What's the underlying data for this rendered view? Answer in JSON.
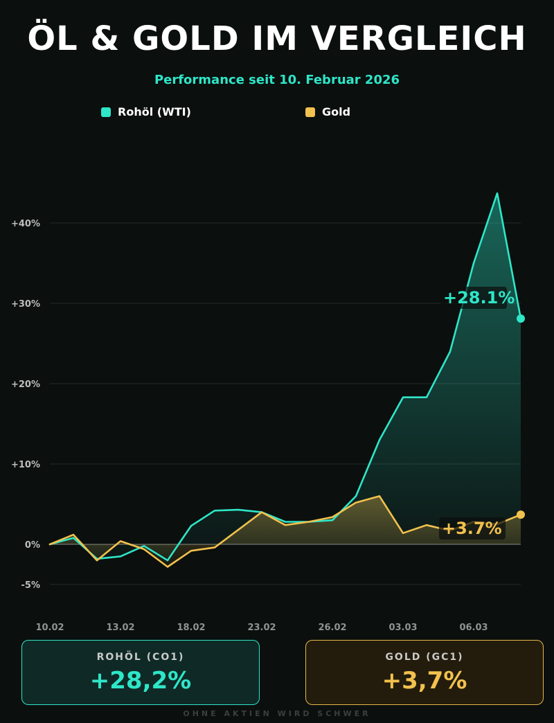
{
  "header": {
    "title": "ÖL & GOLD IM VERGLEICH",
    "subtitle": "Performance seit 10. Februar 2026"
  },
  "colors": {
    "oil": "#2ee6c8",
    "gold": "#f2c14e",
    "background": "#0b0f0e"
  },
  "chart_data": {
    "type": "line",
    "title": "ÖL & GOLD IM VERGLEICH",
    "subtitle": "Performance seit 10. Februar 2026",
    "xlabel": "",
    "ylabel": "",
    "ylim": [
      -5,
      45
    ],
    "yticks": [
      -5,
      0,
      10,
      20,
      30,
      40
    ],
    "ytick_labels": [
      "-5%",
      "0%",
      "+10%",
      "+20%",
      "+30%",
      "+40%"
    ],
    "x_tick_labels": [
      {
        "index": 0,
        "label": "10.02"
      },
      {
        "index": 3,
        "label": "13.02"
      },
      {
        "index": 6,
        "label": "18.02"
      },
      {
        "index": 9,
        "label": "23.02"
      },
      {
        "index": 12,
        "label": "26.02"
      },
      {
        "index": 15,
        "label": "03.03"
      },
      {
        "index": 18,
        "label": "06.03"
      }
    ],
    "grid": true,
    "legend": "top",
    "series": [
      {
        "name": "Rohöl (WTI)",
        "color": "#2ee6c8",
        "values": [
          0,
          0.8,
          -1.8,
          -1.5,
          -0.2,
          -2.0,
          2.3,
          4.2,
          4.3,
          4.0,
          2.8,
          2.8,
          3.0,
          6.0,
          13.0,
          18.3,
          18.3,
          24.0,
          35.0,
          43.7,
          28.1
        ],
        "end_label": "+28.1%"
      },
      {
        "name": "Gold",
        "color": "#f2c14e",
        "values": [
          0,
          1.2,
          -2.0,
          0.4,
          -0.6,
          -2.8,
          -0.8,
          -0.4,
          1.8,
          4.0,
          2.4,
          2.8,
          3.4,
          5.2,
          6.0,
          1.4,
          2.4,
          1.7,
          2.8,
          2.5,
          3.7
        ],
        "end_label": "+3.7%"
      }
    ]
  },
  "cards": {
    "oil": {
      "label": "ROHÖL (CO1)",
      "value": "+28,2%"
    },
    "gold": {
      "label": "GOLD (GC1)",
      "value": "+3,7%"
    }
  },
  "footer": "OHNE AKTIEN WIRD SCHWER"
}
